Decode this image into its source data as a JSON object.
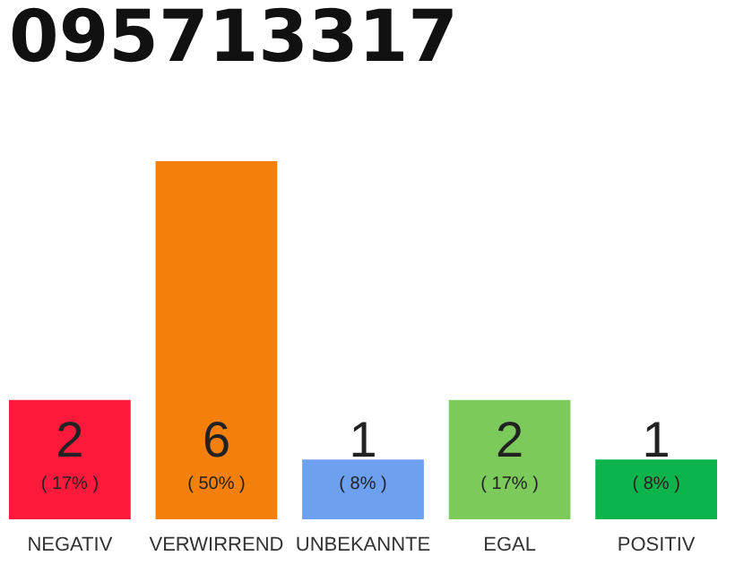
{
  "chart_data": {
    "type": "bar",
    "title": "095713317",
    "categories": [
      "NEGATIV",
      "VERWIRREND",
      "UNBEKANNTE",
      "EGAL",
      "POSITIV"
    ],
    "values": [
      2,
      6,
      1,
      2,
      1
    ],
    "colors": [
      "#ff1a3c",
      "#f47f0a",
      "#6ea0f0",
      "#7cca5c",
      "#0db34b"
    ],
    "data_labels": true,
    "annotations": [
      "( 17% )",
      "( 50% )",
      "( 8% )",
      "( 17% )",
      "( 8% )"
    ],
    "grid": false
  }
}
